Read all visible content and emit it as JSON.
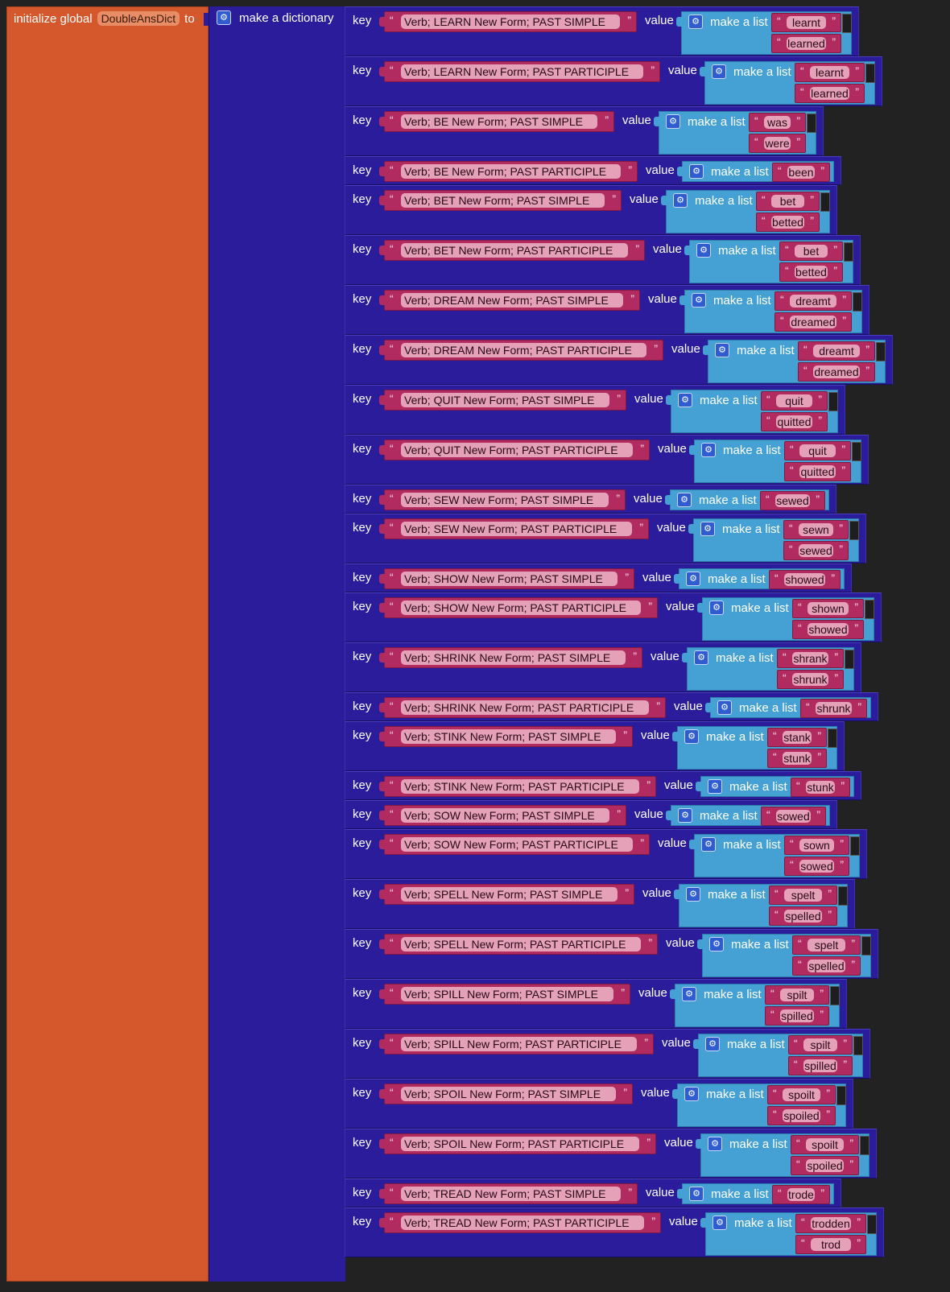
{
  "workspace": {
    "init_label": "initialize global",
    "var_name": "DoubleAnsDict",
    "to_label": "to",
    "dict_label": "make a dictionary",
    "key_label": "key",
    "value_label": "value",
    "list_label": "make a list",
    "gear_icon": "gear-icon",
    "colors": {
      "background": "#222222",
      "variable_block": "#d4582b",
      "dictionary_block": "#2a1c9a",
      "list_block": "#45a1d3",
      "text_block": "#b22b60",
      "text_field": "#e5a1b8"
    }
  },
  "entries": [
    {
      "key": "Verb;  LEARN  New Form;  PAST SIMPLE",
      "values": [
        "learnt",
        "learned"
      ]
    },
    {
      "key": "Verb;  LEARN  New Form;  PAST PARTICIPLE",
      "values": [
        "learnt",
        "learned"
      ]
    },
    {
      "key": "Verb;  BE  New Form;  PAST SIMPLE",
      "values": [
        "was",
        "were"
      ]
    },
    {
      "key": "Verb;  BE  New Form;  PAST PARTICIPLE",
      "values": [
        "been"
      ]
    },
    {
      "key": "Verb;  BET  New Form;  PAST SIMPLE",
      "values": [
        "bet",
        "betted"
      ]
    },
    {
      "key": "Verb;  BET  New Form;  PAST PARTICIPLE",
      "values": [
        "bet",
        "betted"
      ]
    },
    {
      "key": "Verb;  DREAM  New Form;  PAST SIMPLE",
      "values": [
        "dreamt",
        "dreamed"
      ]
    },
    {
      "key": "Verb;  DREAM  New Form;  PAST PARTICIPLE",
      "values": [
        "dreamt",
        "dreamed"
      ]
    },
    {
      "key": "Verb;  QUIT  New Form;  PAST SIMPLE",
      "values": [
        "quit",
        "quitted"
      ]
    },
    {
      "key": "Verb;  QUIT  New Form;  PAST PARTICIPLE",
      "values": [
        "quit",
        "quitted"
      ]
    },
    {
      "key": "Verb;  SEW  New Form;  PAST SIMPLE",
      "values": [
        "sewed"
      ]
    },
    {
      "key": "Verb;  SEW  New Form;  PAST PARTICIPLE",
      "values": [
        "sewn",
        "sewed"
      ]
    },
    {
      "key": "Verb;  SHOW  New Form;  PAST SIMPLE",
      "values": [
        "showed"
      ]
    },
    {
      "key": "Verb;  SHOW  New Form;  PAST PARTICIPLE",
      "values": [
        "shown",
        "showed"
      ]
    },
    {
      "key": "Verb;  SHRINK  New Form;  PAST SIMPLE",
      "values": [
        "shrank",
        "shrunk"
      ]
    },
    {
      "key": "Verb;  SHRINK  New Form;  PAST PARTICIPLE",
      "values": [
        "shrunk"
      ]
    },
    {
      "key": "Verb;  STINK  New Form;  PAST SIMPLE",
      "values": [
        "stank",
        "stunk"
      ]
    },
    {
      "key": "Verb;  STINK  New Form;  PAST PARTICIPLE",
      "values": [
        "stunk"
      ]
    },
    {
      "key": "Verb;  SOW  New Form;  PAST SIMPLE",
      "values": [
        "sowed"
      ]
    },
    {
      "key": "Verb;  SOW  New Form;  PAST PARTICIPLE",
      "values": [
        "sown",
        "sowed"
      ]
    },
    {
      "key": "Verb;  SPELL  New Form;  PAST SIMPLE",
      "values": [
        "spelt",
        "spelled"
      ]
    },
    {
      "key": "Verb;  SPELL  New Form;  PAST PARTICIPLE",
      "values": [
        "spelt",
        "spelled"
      ]
    },
    {
      "key": "Verb;  SPILL  New Form;  PAST SIMPLE",
      "values": [
        "spilt",
        "spilled"
      ]
    },
    {
      "key": "Verb;  SPILL  New Form;  PAST PARTICIPLE",
      "values": [
        "spilt",
        "spilled"
      ]
    },
    {
      "key": "Verb;  SPOIL  New Form;  PAST SIMPLE",
      "values": [
        "spoilt",
        "spoiled"
      ]
    },
    {
      "key": "Verb;  SPOIL  New Form;  PAST PARTICIPLE",
      "values": [
        "spoilt",
        "spoiled"
      ]
    },
    {
      "key": "Verb;  TREAD  New Form;  PAST SIMPLE",
      "values": [
        "trode"
      ]
    },
    {
      "key": "Verb;  TREAD  New Form;  PAST PARTICIPLE",
      "values": [
        "trodden",
        "trod"
      ]
    }
  ]
}
